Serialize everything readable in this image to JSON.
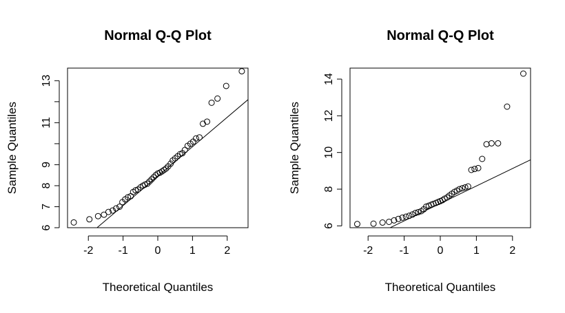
{
  "chart_data": [
    {
      "type": "scatter",
      "title": "Normal Q-Q Plot",
      "xlabel": "Theoretical Quantiles",
      "ylabel": "Sample Quantiles",
      "xlim": [
        -2.6,
        2.6
      ],
      "ylim": [
        6.0,
        13.6
      ],
      "xticks": [
        -2,
        -1,
        0,
        1,
        2
      ],
      "yticks": [
        6,
        7,
        8,
        9,
        11,
        13
      ],
      "yminor": [
        10,
        12
      ],
      "grid": false,
      "reference_line": {
        "x": [
          -1.75,
          2.6
        ],
        "y": [
          6.0,
          12.1
        ]
      },
      "points": {
        "x": [
          -2.42,
          -1.97,
          -1.72,
          -1.55,
          -1.42,
          -1.3,
          -1.2,
          -1.1,
          -1.02,
          -0.94,
          -0.86,
          -0.78,
          -0.71,
          -0.64,
          -0.57,
          -0.5,
          -0.43,
          -0.37,
          -0.3,
          -0.24,
          -0.18,
          -0.12,
          -0.06,
          0.0,
          0.06,
          0.12,
          0.18,
          0.24,
          0.3,
          0.37,
          0.43,
          0.5,
          0.57,
          0.64,
          0.71,
          0.78,
          0.86,
          0.94,
          1.02,
          1.1,
          1.2,
          1.3,
          1.42,
          1.55,
          1.72,
          1.97,
          2.42
        ],
        "y": [
          6.25,
          6.4,
          6.55,
          6.62,
          6.75,
          6.82,
          6.92,
          7.0,
          7.22,
          7.35,
          7.45,
          7.5,
          7.7,
          7.78,
          7.82,
          7.92,
          8.0,
          8.05,
          8.1,
          8.2,
          8.3,
          8.4,
          8.5,
          8.58,
          8.62,
          8.68,
          8.75,
          8.82,
          8.92,
          9.05,
          9.2,
          9.3,
          9.4,
          9.5,
          9.55,
          9.7,
          9.9,
          10.0,
          10.1,
          10.25,
          10.3,
          10.95,
          11.05,
          11.95,
          12.15,
          12.75,
          13.45
        ]
      }
    },
    {
      "type": "scatter",
      "title": "Normal Q-Q Plot",
      "xlabel": "Theoretical Quantiles",
      "ylabel": "Sample Quantiles",
      "xlim": [
        -2.5,
        2.5
      ],
      "ylim": [
        5.9,
        14.6
      ],
      "xticks": [
        -2,
        -1,
        0,
        1,
        2
      ],
      "yticks": [
        6,
        8,
        10,
        12,
        14
      ],
      "yminor": [],
      "grid": false,
      "reference_line": {
        "x": [
          -1.6,
          2.5
        ],
        "y": [
          5.7,
          9.6
        ]
      },
      "points": {
        "x": [
          -2.3,
          -1.85,
          -1.6,
          -1.42,
          -1.28,
          -1.16,
          -1.05,
          -0.95,
          -0.86,
          -0.77,
          -0.69,
          -0.61,
          -0.53,
          -0.46,
          -0.39,
          -0.32,
          -0.25,
          -0.19,
          -0.12,
          -0.06,
          0.0,
          0.06,
          0.12,
          0.19,
          0.25,
          0.32,
          0.39,
          0.46,
          0.53,
          0.61,
          0.69,
          0.77,
          0.86,
          0.95,
          1.05,
          1.16,
          1.28,
          1.42,
          1.6,
          1.85,
          2.3
        ],
        "y": [
          6.1,
          6.12,
          6.18,
          6.22,
          6.3,
          6.38,
          6.45,
          6.5,
          6.55,
          6.62,
          6.7,
          6.75,
          6.8,
          6.9,
          7.05,
          7.1,
          7.15,
          7.2,
          7.25,
          7.3,
          7.35,
          7.4,
          7.48,
          7.55,
          7.65,
          7.75,
          7.85,
          7.92,
          8.0,
          8.05,
          8.1,
          8.15,
          9.05,
          9.1,
          9.15,
          9.65,
          10.45,
          10.5,
          10.5,
          12.5,
          14.3
        ]
      }
    }
  ]
}
